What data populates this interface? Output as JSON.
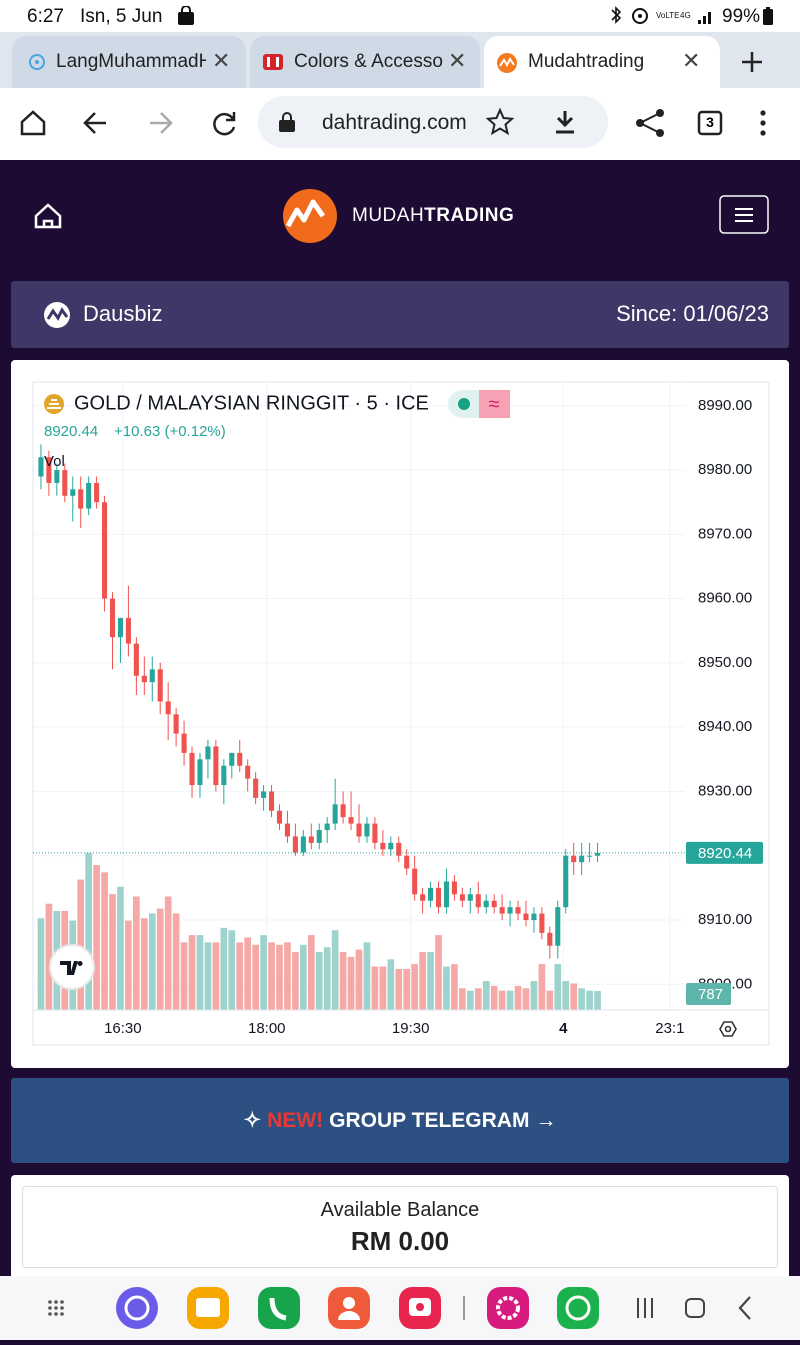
{
  "status_bar": {
    "time": "6:27",
    "date": "Isn, 5 Jun",
    "battery": "99%"
  },
  "browser": {
    "tabs": [
      "LangMuhammadH",
      "Colors & Accessori",
      "Mudahtrading"
    ],
    "url": "dahtrading.com",
    "tab_count": "3"
  },
  "site": {
    "brand_light": "MUDAH",
    "brand_bold": "TRADING"
  },
  "profile": {
    "name": "Dausbiz",
    "since": "Since: 01/06/23"
  },
  "chart_data": {
    "type": "candlestick",
    "title": "GOLD / MALAYSIAN RINGGIT · 5 · ICE",
    "change": "+10.63 (+0.12%)",
    "volume_label": "Vol",
    "up_color": "#26a69a",
    "down_color": "#ef5350",
    "up_volume_color": "#9ed3cd",
    "down_volume_color": "#f5a8a6",
    "grid": true,
    "open": [
      8979,
      8982,
      8978,
      8980,
      8976,
      8977,
      8974,
      8978,
      8975,
      8960,
      8954,
      8957,
      8953,
      8948,
      8947,
      8949,
      8944,
      8942,
      8939,
      8936,
      8931,
      8935,
      8937,
      8931,
      8934,
      8936,
      8934,
      8932,
      8929,
      8930,
      8927,
      8925,
      8923,
      8920.5,
      8923,
      8922,
      8924,
      8925,
      8928,
      8926,
      8925,
      8923,
      8925,
      8922,
      8921,
      8922,
      8920,
      8918,
      8914,
      8913,
      8915,
      8912,
      8916,
      8914,
      8913,
      8914,
      8912,
      8913,
      8912,
      8911,
      8912,
      8911,
      8910,
      8911,
      8908,
      8906,
      8912,
      8920,
      8919,
      8920,
      8920
    ],
    "high": [
      8984,
      8983,
      8981,
      8981,
      8979,
      8979,
      8979,
      8979,
      8976,
      8961,
      8957,
      8962,
      8954,
      8951,
      8951,
      8950,
      8947,
      8943,
      8941,
      8937,
      8936,
      8938,
      8938,
      8935,
      8936,
      8938,
      8935,
      8933,
      8931,
      8931,
      8928,
      8927,
      8925,
      8924,
      8925,
      8925,
      8926,
      8932,
      8930,
      8930,
      8928,
      8926,
      8926,
      8924,
      8923,
      8923,
      8921,
      8920,
      8915,
      8916,
      8916,
      8918,
      8917,
      8915,
      8915,
      8916,
      8914,
      8914,
      8914,
      8913,
      8913,
      8913,
      8912,
      8912,
      8909,
      8913,
      8921,
      8922,
      8922,
      8922,
      8922
    ],
    "low": [
      8977,
      8976,
      8976,
      8975,
      8972,
      8971,
      8973,
      8974,
      8958,
      8949,
      8950,
      8951,
      8945,
      8945,
      8944,
      8942,
      8938,
      8937,
      8934,
      8929,
      8929,
      8932,
      8930,
      8928,
      8932,
      8933,
      8930,
      8928,
      8927,
      8926,
      8924,
      8922,
      8920,
      8920,
      8921,
      8921,
      8922,
      8924,
      8925,
      8924,
      8922,
      8922,
      8921,
      8920,
      8920,
      8919,
      8917,
      8913,
      8911,
      8912,
      8911,
      8911,
      8913,
      8912,
      8911,
      8911,
      8911,
      8911,
      8910,
      8909,
      8910,
      8909,
      8908,
      8907,
      8904,
      8904,
      8911,
      8917,
      8917,
      8919,
      8919
    ],
    "close": [
      8982,
      8978,
      8980,
      8976,
      8977,
      8974,
      8978,
      8975,
      8960,
      8954,
      8957,
      8953,
      8948,
      8947,
      8949,
      8944,
      8942,
      8939,
      8936,
      8931,
      8935,
      8937,
      8931,
      8934,
      8936,
      8934,
      8932,
      8929,
      8930,
      8927,
      8925,
      8923,
      8920.5,
      8923,
      8922,
      8924,
      8925,
      8928,
      8926,
      8925,
      8923,
      8925,
      8922,
      8921,
      8922,
      8920,
      8918,
      8914,
      8913,
      8915,
      8912,
      8916,
      8914,
      8913,
      8914,
      8912,
      8913,
      8912,
      8911,
      8912,
      8911,
      8910,
      8911,
      8908,
      8906,
      8912,
      8920,
      8919,
      8920,
      8920,
      8920.44
    ],
    "volume": [
      3800,
      4400,
      4100,
      4100,
      3700,
      5400,
      6500,
      6000,
      5700,
      4800,
      5100,
      3700,
      4700,
      3800,
      4000,
      4200,
      4700,
      4000,
      2800,
      3100,
      3100,
      2800,
      2800,
      3400,
      3300,
      2800,
      3000,
      2700,
      3100,
      2800,
      2700,
      2800,
      2400,
      2700,
      3100,
      2400,
      2600,
      3300,
      2400,
      2200,
      2500,
      2800,
      1800,
      1800,
      2100,
      1700,
      1700,
      1900,
      2400,
      2400,
      3100,
      1800,
      1900,
      900,
      800,
      900,
      1200,
      1000,
      800,
      800,
      1000,
      900,
      1200,
      1900,
      800,
      1900,
      1200,
      1100,
      900,
      800,
      787
    ],
    "xlim": [
      -1,
      81
    ],
    "xticks": [
      {
        "value": 10.3,
        "label": "16:30"
      },
      {
        "value": 28.4,
        "label": "18:00"
      },
      {
        "value": 46.5,
        "label": "19:30"
      },
      {
        "value": 65.7,
        "label": "4"
      },
      {
        "value": 79.1,
        "label": "23:1"
      }
    ],
    "ylim": [
      8896,
      8993.7
    ],
    "yticks": [
      {
        "value": 8900,
        "label": "8900.00"
      },
      {
        "value": 8910,
        "label": "8910.00"
      },
      {
        "value": 8920,
        "label": "8920.00"
      },
      {
        "value": 8930,
        "label": "8930.00"
      },
      {
        "value": 8940,
        "label": "8940.00"
      },
      {
        "value": 8950,
        "label": "8950.00"
      },
      {
        "value": 8960,
        "label": "8960.00"
      },
      {
        "value": 8970,
        "label": "8970.00"
      },
      {
        "value": 8980,
        "label": "8980.00"
      },
      {
        "value": 8990,
        "label": "8990.00"
      }
    ],
    "y2lim": [
      0,
      26000
    ]
  },
  "banner": {
    "new": "NEW!",
    "text": "GROUP TELEGRAM"
  },
  "balance": {
    "label": "Available Balance",
    "amount": "RM 0.00"
  }
}
